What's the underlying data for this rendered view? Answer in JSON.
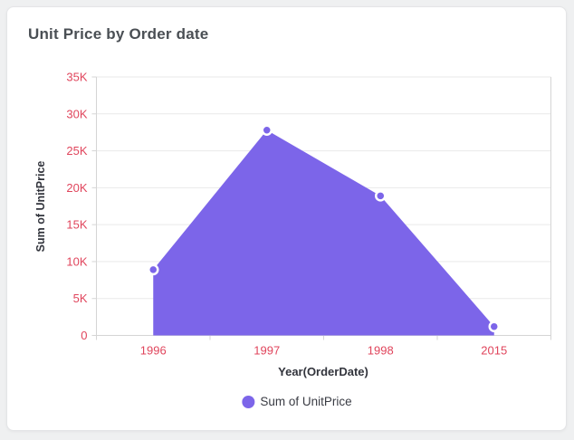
{
  "page": {
    "background": "#EFF0F1"
  },
  "card": {
    "title": "Unit Price by Order date"
  },
  "chart_data": {
    "type": "area",
    "title": "Unit Price by Order date",
    "categories": [
      "1996",
      "1997",
      "1998",
      "2015"
    ],
    "series": [
      {
        "name": "Sum of UnitPrice",
        "values": [
          8900,
          27800,
          18900,
          1200
        ]
      }
    ],
    "xlabel": "Year(OrderDate)",
    "ylabel": "Sum of UnitPrice",
    "ylim": [
      0,
      35000
    ],
    "y_ticks": [
      {
        "value": 0,
        "label": "0"
      },
      {
        "value": 5000,
        "label": "5K"
      },
      {
        "value": 10000,
        "label": "10K"
      },
      {
        "value": 15000,
        "label": "15K"
      },
      {
        "value": 20000,
        "label": "20K"
      },
      {
        "value": 25000,
        "label": "25K"
      },
      {
        "value": 30000,
        "label": "30K"
      },
      {
        "value": 35000,
        "label": "35K"
      }
    ],
    "grid": true,
    "legend": {
      "position": "bottom",
      "items": [
        "Sum of UnitPrice"
      ]
    },
    "colors": {
      "series": "#7C65E9",
      "marker_border": "#FFFFFF",
      "tick_label": "#E0455C",
      "axis_title": "#32343C",
      "legend_text": "#3A3C44",
      "gridline": "#E9E9E9",
      "axis_line": "#D5D5D5",
      "title": "#4A4F54"
    }
  }
}
